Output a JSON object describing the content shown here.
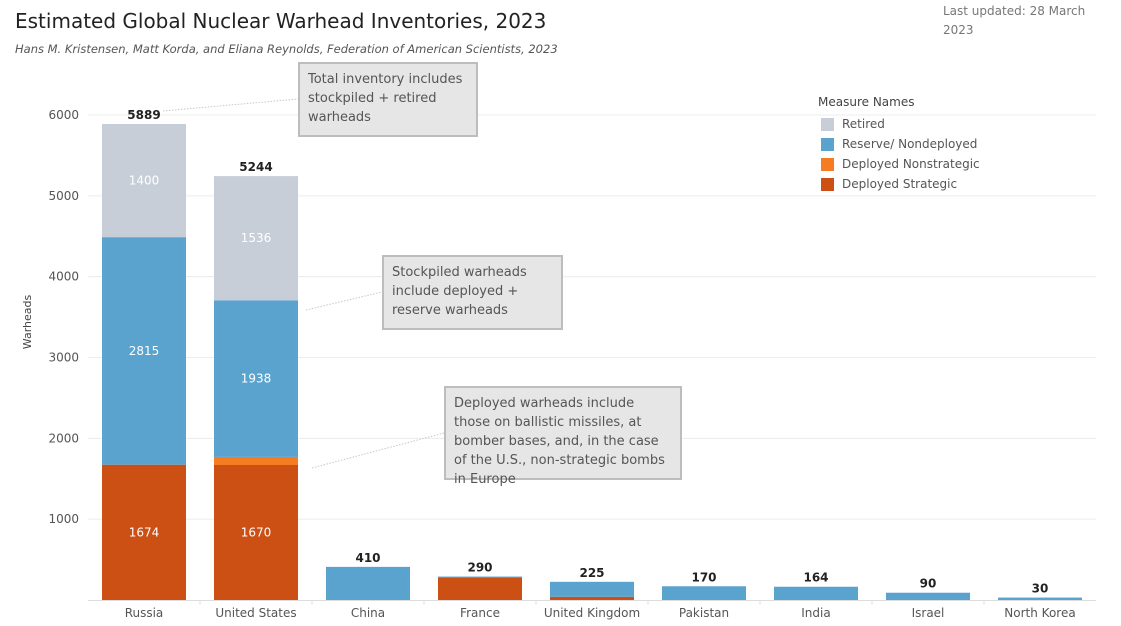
{
  "header": {
    "title": "Estimated Global Nuclear Warhead Inventories, 2023",
    "subtitle": "Hans M. Kristensen, Matt Korda, and Eliana Reynolds, Federation of American Scientists, 2023",
    "updated": "Last updated: 28 March 2023"
  },
  "callouts": {
    "total": "Total inventory includes stockpiled + retired warheads",
    "stockpiled": "Stockpiled warheads include deployed + reserve warheads",
    "deployed": "Deployed warheads include those on ballistic missiles, at bomber bases, and, in the case of the U.S., non-strategic bombs in Europe"
  },
  "legend": {
    "title": "Measure Names"
  },
  "chart_data": {
    "type": "bar",
    "stacked": true,
    "categories": [
      "Russia",
      "United States",
      "China",
      "France",
      "United Kingdom",
      "Pakistan",
      "India",
      "Israel",
      "North Korea"
    ],
    "series": [
      {
        "name": "Deployed Strategic",
        "color": "#cc4f14",
        "values": [
          1674,
          1670,
          0,
          280,
          40,
          0,
          0,
          0,
          0
        ]
      },
      {
        "name": "Deployed Nonstrategic",
        "color": "#f57c21",
        "values": [
          0,
          100,
          0,
          0,
          0,
          0,
          0,
          0,
          0
        ]
      },
      {
        "name": "Reserve/ Nondeployed",
        "color": "#5aa3cf",
        "values": [
          2815,
          1938,
          410,
          10,
          185,
          170,
          164,
          90,
          30
        ]
      },
      {
        "name": "Retired",
        "color": "#c7ced8",
        "values": [
          1400,
          1536,
          0,
          0,
          0,
          0,
          0,
          0,
          0
        ]
      }
    ],
    "totals": [
      5889,
      5244,
      410,
      290,
      225,
      170,
      164,
      90,
      30
    ],
    "segment_labels": {
      "Deployed Strategic": [
        "1674",
        "1670",
        "",
        "",
        "",
        "",
        "",
        "",
        ""
      ],
      "Reserve/ Nondeployed": [
        "2815",
        "1938",
        "",
        "",
        "",
        "",
        "",
        "",
        ""
      ],
      "Retired": [
        "1400",
        "1536",
        "",
        "",
        "",
        "",
        "",
        "",
        ""
      ]
    },
    "ylabel": "Warheads",
    "ylim": [
      0,
      6500
    ],
    "yticks": [
      1000,
      2000,
      3000,
      4000,
      5000,
      6000
    ],
    "grid": true,
    "legend_position": "top-right"
  }
}
